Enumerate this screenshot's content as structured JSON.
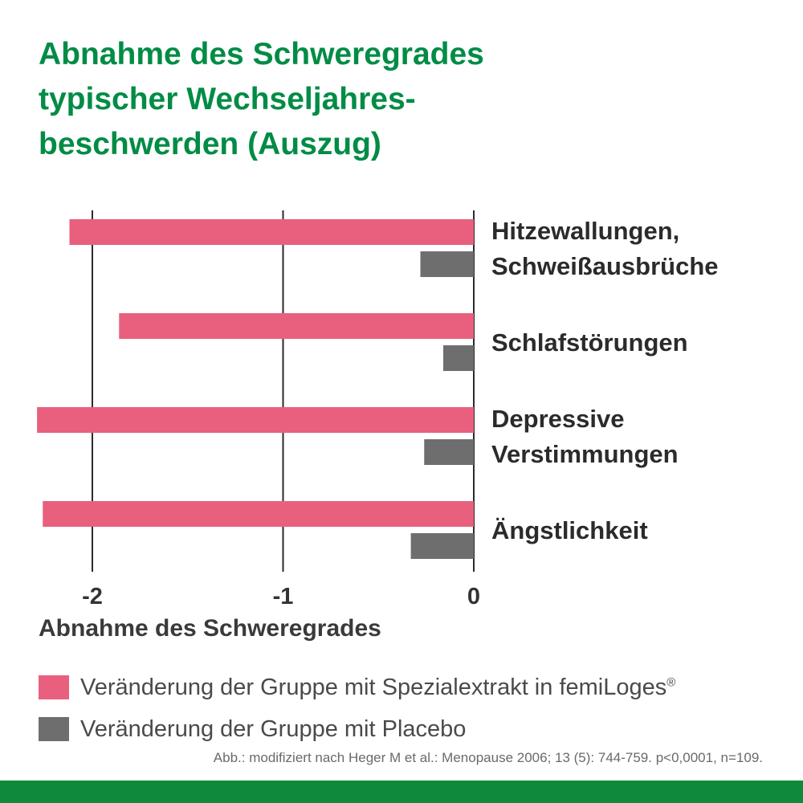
{
  "title": {
    "line1": "Abnahme des Schweregrades",
    "line2": "typischer Wechseljahres-",
    "line3": "beschwerden (Auszug)"
  },
  "colors": {
    "title": "#008c45",
    "femiloges": "#e8607e",
    "placebo": "#6e6e6e",
    "footer": "#0f8a3c",
    "gridline": "#2b2b2b"
  },
  "chart_data": {
    "type": "bar",
    "orientation": "horizontal",
    "categories": [
      [
        "Hitzewallungen,",
        "Schweißausbrüche"
      ],
      [
        "Schlafstörungen"
      ],
      [
        "Depressive",
        "Verstimmungen"
      ],
      [
        "Ängstlichkeit"
      ]
    ],
    "series": [
      {
        "name": "Veränderung der Gruppe mit Spezialextrakt in femiLoges",
        "values": [
          -2.12,
          -1.86,
          -2.29,
          -2.26
        ]
      },
      {
        "name": "Veränderung der Gruppe mit Placebo",
        "values": [
          -0.28,
          -0.16,
          -0.26,
          -0.33
        ]
      }
    ],
    "xlim": [
      -2.3,
      0
    ],
    "xticks": [
      -2,
      -1,
      0
    ],
    "xticklabels": [
      "-2",
      "-1",
      "0"
    ],
    "xlabel": "Abnahme des Schweregrades",
    "grid": true,
    "legend_position": "bottom"
  },
  "legend": {
    "item1": "Veränderung der Gruppe mit Spezialextrakt in femiLoges",
    "item1_sup": "®",
    "item2": "Veränderung der Gruppe mit Placebo"
  },
  "source": "Abb.: modifiziert nach Heger M et al.: Menopause 2006; 13 (5): 744-759. p<0,0001, n=109."
}
